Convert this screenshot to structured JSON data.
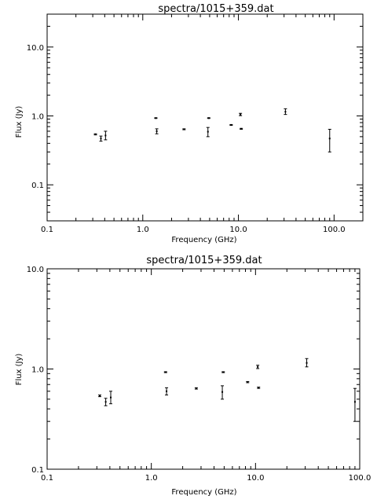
{
  "chart_data": [
    {
      "type": "scatter",
      "title": "spectra/1015+359.dat",
      "xlabel": "Frequency (GHz)",
      "ylabel": "Flux (Jy)",
      "xscale": "log",
      "yscale": "log",
      "xlim": [
        0.1,
        200
      ],
      "ylim": [
        0.03,
        30
      ],
      "xticks": [
        {
          "v": 0.1,
          "label": "0.1"
        },
        {
          "v": 1,
          "label": "1.0"
        },
        {
          "v": 10,
          "label": "10.0"
        },
        {
          "v": 100,
          "label": "100.0"
        }
      ],
      "yticks": [
        {
          "v": 0.1,
          "label": "0.1"
        },
        {
          "v": 1,
          "label": "1.0"
        },
        {
          "v": 10,
          "label": "10.0"
        }
      ],
      "points": [
        {
          "x": 0.32,
          "y": 0.54,
          "lo": 0.53,
          "hi": 0.55
        },
        {
          "x": 0.365,
          "y": 0.47,
          "lo": 0.43,
          "hi": 0.51
        },
        {
          "x": 0.408,
          "y": 0.52,
          "lo": 0.45,
          "hi": 0.6
        },
        {
          "x": 1.37,
          "y": 0.93,
          "lo": 0.92,
          "hi": 0.94
        },
        {
          "x": 1.4,
          "y": 0.6,
          "lo": 0.55,
          "hi": 0.65
        },
        {
          "x": 2.7,
          "y": 0.64,
          "lo": 0.63,
          "hi": 0.65
        },
        {
          "x": 4.8,
          "y": 0.59,
          "lo": 0.5,
          "hi": 0.68
        },
        {
          "x": 4.9,
          "y": 0.93,
          "lo": 0.92,
          "hi": 0.94
        },
        {
          "x": 8.4,
          "y": 0.74,
          "lo": 0.73,
          "hi": 0.75
        },
        {
          "x": 10.5,
          "y": 1.05,
          "lo": 1.01,
          "hi": 1.09
        },
        {
          "x": 10.7,
          "y": 0.65,
          "lo": 0.64,
          "hi": 0.66
        },
        {
          "x": 31.0,
          "y": 1.15,
          "lo": 1.05,
          "hi": 1.27
        },
        {
          "x": 90.0,
          "y": 0.47,
          "lo": 0.3,
          "hi": 0.64
        }
      ]
    },
    {
      "type": "scatter",
      "title": "spectra/1015+359.dat",
      "xlabel": "Frequency (GHz)",
      "ylabel": "Flux (Jy)",
      "xscale": "log",
      "yscale": "log",
      "xlim": [
        0.1,
        100
      ],
      "ylim": [
        0.1,
        10
      ],
      "xticks": [
        {
          "v": 0.1,
          "label": "0.1"
        },
        {
          "v": 1,
          "label": "1.0"
        },
        {
          "v": 10,
          "label": "10.0"
        },
        {
          "v": 100,
          "label": "100.0"
        }
      ],
      "yticks": [
        {
          "v": 0.1,
          "label": "0.1"
        },
        {
          "v": 1,
          "label": "1.0"
        },
        {
          "v": 10,
          "label": "10.0"
        }
      ],
      "points": [
        {
          "x": 0.32,
          "y": 0.54,
          "lo": 0.53,
          "hi": 0.55
        },
        {
          "x": 0.365,
          "y": 0.47,
          "lo": 0.43,
          "hi": 0.51
        },
        {
          "x": 0.408,
          "y": 0.52,
          "lo": 0.45,
          "hi": 0.6
        },
        {
          "x": 1.37,
          "y": 0.93,
          "lo": 0.92,
          "hi": 0.94
        },
        {
          "x": 1.4,
          "y": 0.6,
          "lo": 0.55,
          "hi": 0.65
        },
        {
          "x": 2.7,
          "y": 0.64,
          "lo": 0.63,
          "hi": 0.65
        },
        {
          "x": 4.8,
          "y": 0.59,
          "lo": 0.5,
          "hi": 0.68
        },
        {
          "x": 4.9,
          "y": 0.93,
          "lo": 0.92,
          "hi": 0.94
        },
        {
          "x": 8.4,
          "y": 0.74,
          "lo": 0.73,
          "hi": 0.75
        },
        {
          "x": 10.5,
          "y": 1.05,
          "lo": 1.01,
          "hi": 1.09
        },
        {
          "x": 10.7,
          "y": 0.65,
          "lo": 0.64,
          "hi": 0.66
        },
        {
          "x": 31.0,
          "y": 1.15,
          "lo": 1.05,
          "hi": 1.27
        },
        {
          "x": 90.0,
          "y": 0.47,
          "lo": 0.3,
          "hi": 0.64
        }
      ]
    }
  ]
}
